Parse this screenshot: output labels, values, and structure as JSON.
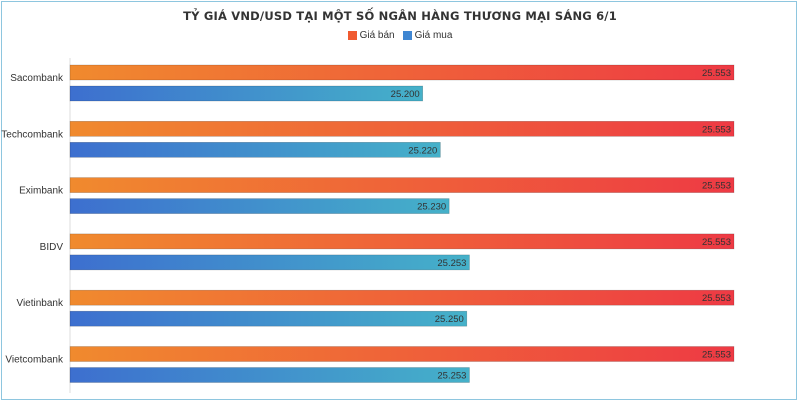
{
  "chart_data": {
    "type": "bar",
    "orientation": "horizontal",
    "title": "TỶ GIÁ VND/USD TẠI MỘT SỐ NGÂN HÀNG THƯƠNG MẠI SÁNG 6/1",
    "categories": [
      "Sacombank",
      "Techcombank",
      "Eximbank",
      "BIDV",
      "Vietinbank",
      "Vietcombank"
    ],
    "series": [
      {
        "name": "Giá bán",
        "values": [
          25553,
          25553,
          25553,
          25553,
          25553,
          25553
        ],
        "labels": [
          "25.553",
          "25.553",
          "25.553",
          "25.553",
          "25.553",
          "25.553"
        ],
        "color_start": "#f08a2e",
        "color_end": "#ee3a44",
        "legend_color": "#f05a30"
      },
      {
        "name": "Giá mua",
        "values": [
          25200,
          25220,
          25230,
          25253,
          25250,
          25253
        ],
        "labels": [
          "25.200",
          "25.220",
          "25.230",
          "25.253",
          "25.250",
          "25.253"
        ],
        "color_start": "#3d6fcf",
        "color_end": "#45b1c9",
        "legend_color": "#3f86d2"
      }
    ],
    "xlim": [
      24800,
      25553
    ],
    "grid": false,
    "legend_position": "top-center"
  }
}
